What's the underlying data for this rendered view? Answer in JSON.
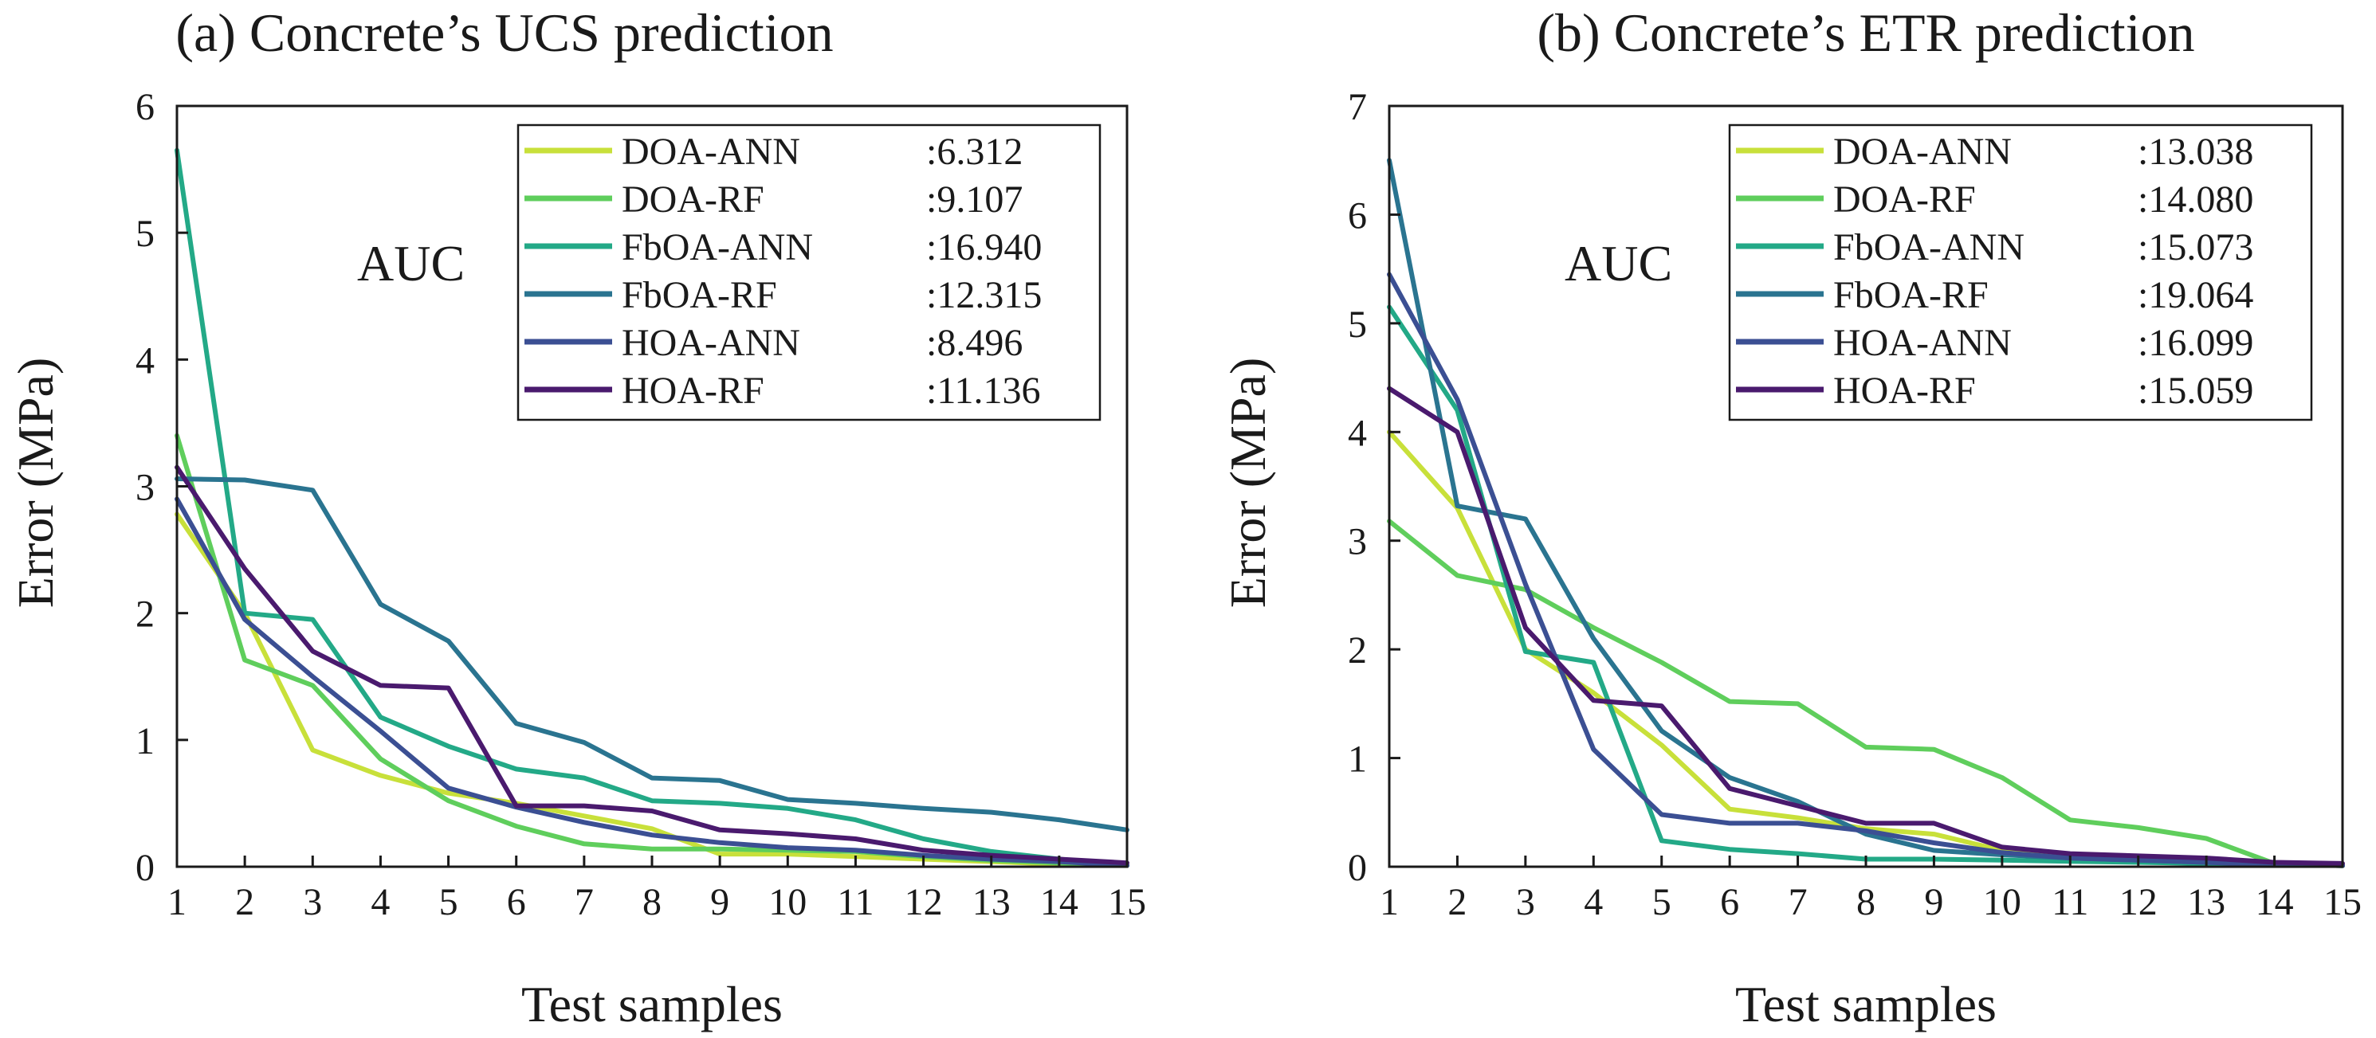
{
  "chart_data": [
    {
      "type": "line",
      "title": "(a) Concrete’s UCS prediction",
      "xlabel": "Test samples",
      "ylabel": "Error (MPa)",
      "xlim": [
        1,
        15
      ],
      "ylim": [
        0,
        6
      ],
      "x_ticks": [
        "1",
        "2",
        "3",
        "4",
        "5",
        "6",
        "7",
        "8",
        "9",
        "10",
        "11",
        "12",
        "13",
        "14",
        "15"
      ],
      "y_ticks": [
        "0",
        "1",
        "2",
        "3",
        "4",
        "5",
        "6"
      ],
      "legend_title": "AUC",
      "legend_position": "top-right",
      "x": [
        1,
        2,
        3,
        4,
        5,
        6,
        7,
        8,
        9,
        10,
        11,
        12,
        13,
        14,
        15
      ],
      "series": [
        {
          "name": "DOA-ANN",
          "auc": ":6.312",
          "color": "#c8e03a",
          "values": [
            2.78,
            2.0,
            0.92,
            0.72,
            0.58,
            0.5,
            0.4,
            0.3,
            0.1,
            0.1,
            0.08,
            0.06,
            0.04,
            0.02,
            0.01
          ]
        },
        {
          "name": "DOA-RF",
          "auc": ":9.107",
          "color": "#5fce5c",
          "values": [
            3.4,
            1.63,
            1.43,
            0.85,
            0.52,
            0.32,
            0.18,
            0.14,
            0.14,
            0.13,
            0.12,
            0.08,
            0.05,
            0.03,
            0.01
          ]
        },
        {
          "name": "FbOA-ANN",
          "auc": ":16.940",
          "color": "#23a987",
          "values": [
            5.65,
            2.0,
            1.95,
            1.18,
            0.95,
            0.77,
            0.7,
            0.52,
            0.5,
            0.46,
            0.37,
            0.22,
            0.12,
            0.06,
            0.01
          ]
        },
        {
          "name": "FbOA-RF",
          "auc": ":12.315",
          "color": "#2a7490",
          "values": [
            3.06,
            3.05,
            2.97,
            2.07,
            1.78,
            1.13,
            0.98,
            0.7,
            0.68,
            0.53,
            0.5,
            0.46,
            0.43,
            0.37,
            0.29
          ]
        },
        {
          "name": "HOA-ANN",
          "auc": ":8.496",
          "color": "#3b4f93",
          "values": [
            2.9,
            1.95,
            1.5,
            1.07,
            0.62,
            0.47,
            0.35,
            0.25,
            0.19,
            0.15,
            0.13,
            0.09,
            0.06,
            0.04,
            0.01
          ]
        },
        {
          "name": "HOA-RF",
          "auc": ":11.136",
          "color": "#4a1a6e",
          "values": [
            3.15,
            2.35,
            1.7,
            1.43,
            1.41,
            0.48,
            0.48,
            0.44,
            0.29,
            0.26,
            0.22,
            0.13,
            0.09,
            0.06,
            0.03
          ]
        }
      ]
    },
    {
      "type": "line",
      "title": "(b) Concrete’s ETR prediction",
      "xlabel": "Test samples",
      "ylabel": "Error (MPa)",
      "xlim": [
        1,
        15
      ],
      "ylim": [
        0,
        7
      ],
      "x_ticks": [
        "1",
        "2",
        "3",
        "4",
        "5",
        "6",
        "7",
        "8",
        "9",
        "10",
        "11",
        "12",
        "13",
        "14",
        "15"
      ],
      "y_ticks": [
        "0",
        "1",
        "2",
        "3",
        "4",
        "5",
        "6",
        "7"
      ],
      "legend_title": "AUC",
      "legend_position": "top-right",
      "x": [
        1,
        2,
        3,
        4,
        5,
        6,
        7,
        8,
        9,
        10,
        11,
        12,
        13,
        14,
        15
      ],
      "series": [
        {
          "name": "DOA-ANN",
          "auc": ":13.038",
          "color": "#c8e03a",
          "values": [
            4.0,
            3.3,
            2.0,
            1.6,
            1.12,
            0.53,
            0.45,
            0.35,
            0.3,
            0.15,
            0.1,
            0.07,
            0.04,
            0.02,
            0.01
          ]
        },
        {
          "name": "DOA-RF",
          "auc": ":14.080",
          "color": "#5fce5c",
          "values": [
            3.18,
            2.68,
            2.55,
            2.2,
            1.88,
            1.52,
            1.5,
            1.1,
            1.08,
            0.82,
            0.43,
            0.36,
            0.26,
            0.03,
            0.01
          ]
        },
        {
          "name": "FbOA-ANN",
          "auc": ":15.073",
          "color": "#23a987",
          "values": [
            5.15,
            4.2,
            1.98,
            1.88,
            0.24,
            0.16,
            0.12,
            0.07,
            0.07,
            0.06,
            0.05,
            0.04,
            0.03,
            0.02,
            0.01
          ]
        },
        {
          "name": "FbOA-RF",
          "auc": ":19.064",
          "color": "#2a7490",
          "values": [
            6.5,
            3.32,
            3.2,
            2.1,
            1.25,
            0.82,
            0.6,
            0.3,
            0.15,
            0.11,
            0.08,
            0.06,
            0.04,
            0.02,
            0.01
          ]
        },
        {
          "name": "HOA-ANN",
          "auc": ":16.099",
          "color": "#3b4f93",
          "values": [
            5.45,
            4.3,
            2.6,
            1.08,
            0.48,
            0.4,
            0.4,
            0.33,
            0.22,
            0.13,
            0.08,
            0.06,
            0.04,
            0.02,
            0.01
          ]
        },
        {
          "name": "HOA-RF",
          "auc": ":15.059",
          "color": "#4a1a6e",
          "values": [
            4.4,
            4.0,
            2.2,
            1.53,
            1.48,
            0.72,
            0.56,
            0.4,
            0.4,
            0.18,
            0.12,
            0.1,
            0.08,
            0.04,
            0.03
          ]
        }
      ]
    }
  ]
}
